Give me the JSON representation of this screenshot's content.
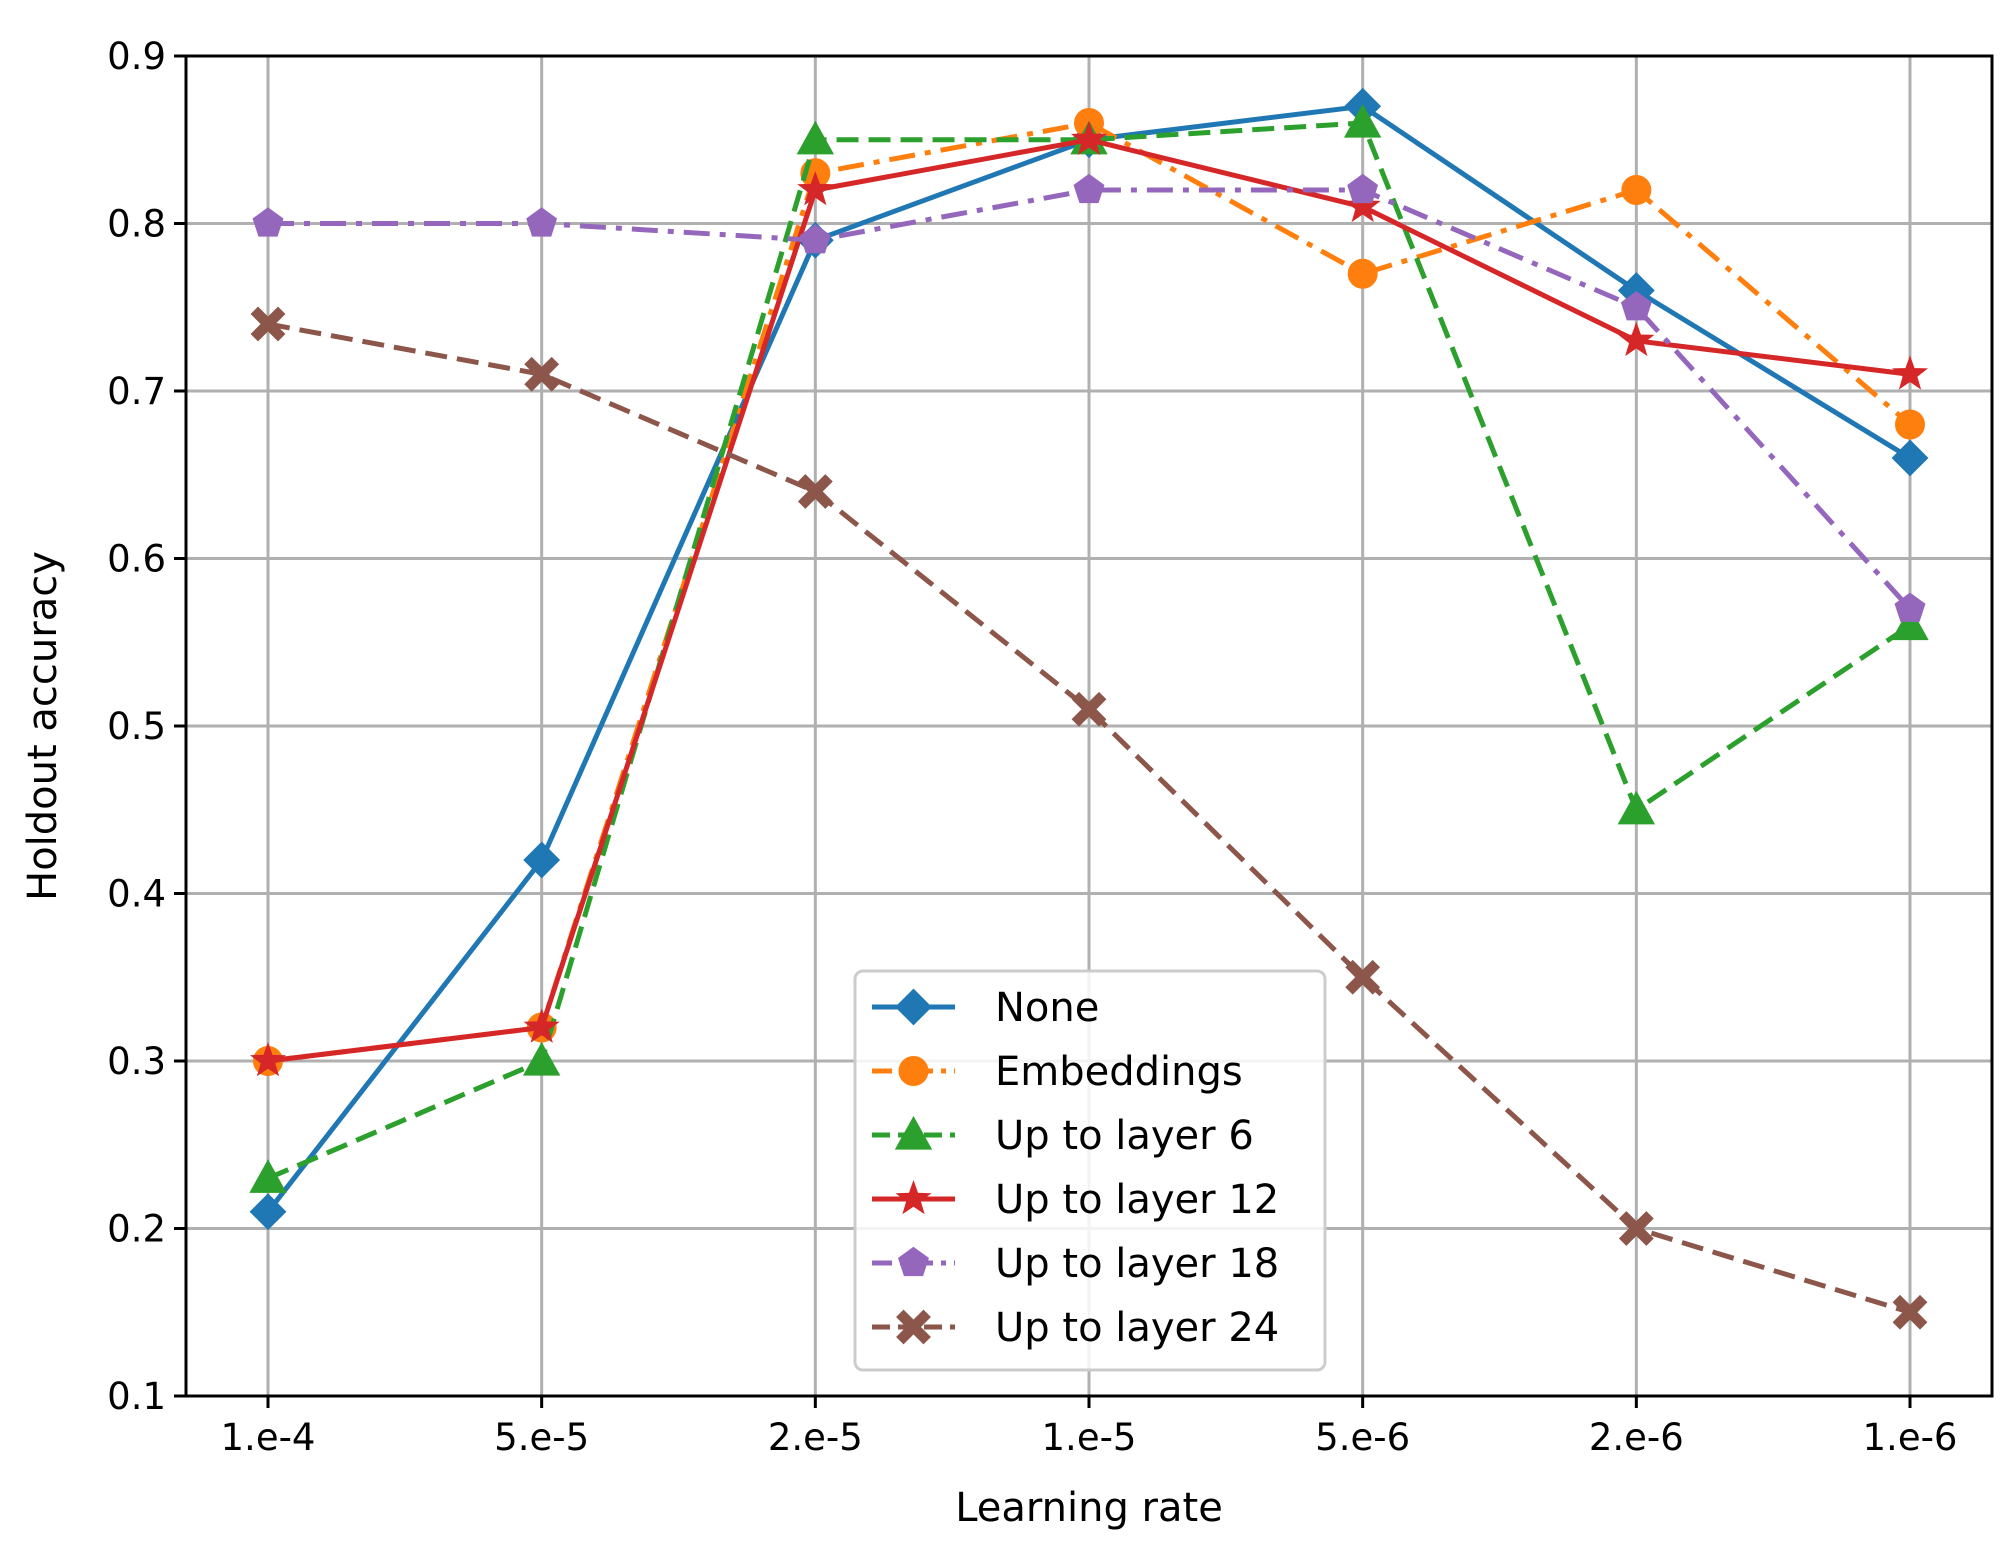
{
  "chart_data": {
    "type": "line",
    "title": "",
    "xlabel": "Learning rate",
    "ylabel": "Holdout accuracy",
    "categories": [
      "1.e-4",
      "5.e-5",
      "2.e-5",
      "1.e-5",
      "5.e-6",
      "2.e-6",
      "1.e-6"
    ],
    "ylim": [
      0.1,
      0.9
    ],
    "yticks": [
      "0.1",
      "0.2",
      "0.3",
      "0.4",
      "0.5",
      "0.6",
      "0.7",
      "0.8",
      "0.9"
    ],
    "grid": true,
    "legend_position": "lower-center",
    "series": [
      {
        "name": "None",
        "color": "#1f77b4",
        "marker": "diamond",
        "dash": "solid",
        "values": [
          0.21,
          0.42,
          0.79,
          0.85,
          0.87,
          0.76,
          0.66
        ]
      },
      {
        "name": "Embeddings",
        "color": "#ff7f0e",
        "marker": "circle",
        "dash": "dashdot",
        "values": [
          0.3,
          0.32,
          0.83,
          0.86,
          0.77,
          0.82,
          0.68
        ]
      },
      {
        "name": "Up to layer 6",
        "color": "#2ca02c",
        "marker": "triangle",
        "dash": "dashed",
        "values": [
          0.23,
          0.3,
          0.85,
          0.85,
          0.86,
          0.45,
          0.56
        ]
      },
      {
        "name": "Up to layer 12",
        "color": "#d62728",
        "marker": "star",
        "dash": "solid",
        "values": [
          0.3,
          0.32,
          0.82,
          0.85,
          0.81,
          0.73,
          0.71
        ]
      },
      {
        "name": "Up to layer 18",
        "color": "#9467bd",
        "marker": "pentagon",
        "dash": "dashdot",
        "values": [
          0.8,
          0.8,
          0.79,
          0.82,
          0.82,
          0.75,
          0.57
        ]
      },
      {
        "name": "Up to layer 24",
        "color": "#8c564b",
        "marker": "xfilled",
        "dash": "dashed",
        "values": [
          0.74,
          0.71,
          0.64,
          0.51,
          0.35,
          0.2,
          0.15
        ]
      }
    ]
  }
}
